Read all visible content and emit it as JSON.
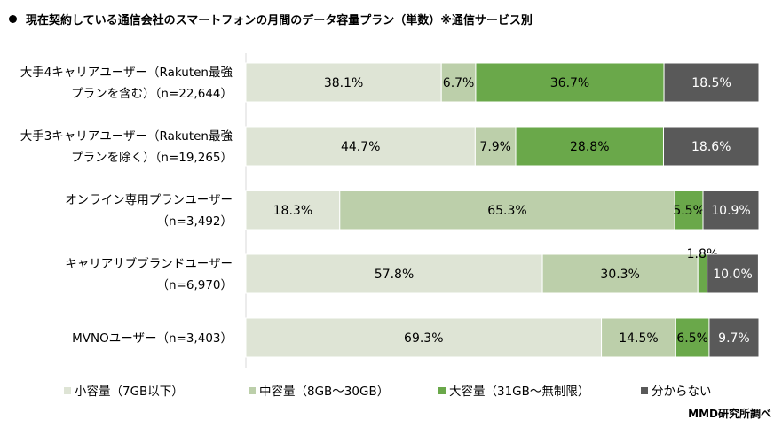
{
  "title": "現在契約している通信会社のスマートフォンの月間のデータ容量プラン（単数）※通信サービス別",
  "source": "MMD研究所調べ",
  "chart_data": {
    "type": "bar",
    "orientation": "horizontal",
    "stacked": true,
    "title": "現在契約している通信会社のスマートフォンの月間のデータ容量プラン（単数）※通信サービス別",
    "categories": [
      [
        "大手4キャリアユーザー（Rakuten最強",
        "プランを含む）（n=22,644）"
      ],
      [
        "大手3キャリアユーザー（Rakuten最強",
        "プランを除く）（n=19,265）"
      ],
      [
        "オンライン専用プランユーザー",
        "（n=3,492）"
      ],
      [
        "キャリアサブブランドユーザー",
        "（n=6,970）"
      ],
      [
        "MVNOユーザー（n=3,403）"
      ]
    ],
    "series": [
      {
        "name": "小容量（7GB以下）",
        "color": "#dee4d5",
        "label_color": "#000000",
        "values": [
          38.1,
          44.7,
          18.3,
          57.8,
          69.3
        ]
      },
      {
        "name": "中容量（8GB〜30GB）",
        "color": "#bccfaa",
        "label_color": "#000000",
        "values": [
          6.7,
          7.9,
          65.3,
          30.3,
          14.5
        ]
      },
      {
        "name": "大容量（31GB〜無制限）",
        "color": "#6aa84a",
        "label_color": "#000000",
        "values": [
          36.7,
          28.8,
          5.5,
          1.8,
          6.5
        ]
      },
      {
        "name": "分からない",
        "color": "#595959",
        "label_color": "#ffffff",
        "values": [
          18.5,
          18.6,
          10.9,
          10.0,
          9.7
        ]
      }
    ],
    "xlim": [
      0,
      100
    ],
    "unit": "%",
    "grid": false,
    "legend": "bottom"
  }
}
